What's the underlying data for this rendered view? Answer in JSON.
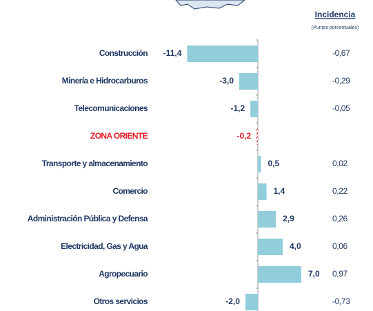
{
  "chart_data": {
    "type": "bar",
    "orientation": "horizontal",
    "categories": [
      "Construcción",
      "Minería e Hidrocarburos",
      "Telecomunicaciones",
      "ZONA ORIENTE",
      "Transporte y almacenamiento",
      "Comercio",
      "Administración Pública y Defensa",
      "Electricidad, Gas y Agua",
      "Agropecuario",
      "Otros servicios"
    ],
    "values": [
      -11.4,
      -3.0,
      -1.2,
      -0.2,
      0.5,
      1.4,
      2.9,
      4.0,
      7.0,
      -2.0
    ],
    "value_labels": [
      "-11,4",
      "-3,0",
      "-1,2",
      "-0,2",
      "0,5",
      "1,4",
      "2,9",
      "4,0",
      "7,0",
      "-2,0"
    ],
    "color": "#92cddc",
    "label_color": "#1f3864",
    "highlight_index": 3,
    "highlight_color": "#e31b23",
    "xlim": [
      -12.5,
      8
    ],
    "incidence": {
      "title": "Incidencia",
      "subtitle": "(Puntos porcentuales)",
      "values": [
        -0.67,
        -0.29,
        -0.05,
        0.02,
        0.22,
        0.26,
        0.06,
        0.97,
        -0.73
      ],
      "value_labels": [
        "-0,67",
        "-0,29",
        "-0,05",
        "0,02",
        "0,22",
        "0,26",
        "0,06",
        "0,97",
        "-0,73"
      ]
    }
  }
}
